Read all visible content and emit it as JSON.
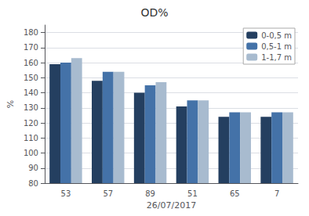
{
  "chart_data": {
    "type": "bar",
    "title": "OD%",
    "xlabel": "26/07/2017",
    "ylabel": "%",
    "categories": [
      "53",
      "57",
      "89",
      "51",
      "65",
      "7"
    ],
    "series": [
      {
        "name": "0-0,5 m",
        "color": "#243F60",
        "values": [
          159,
          148,
          140,
          131,
          124,
          124
        ]
      },
      {
        "name": "0,5-1 m",
        "color": "#4472A8",
        "values": [
          160,
          154,
          145,
          135,
          127,
          127
        ]
      },
      {
        "name": "1-1,7 m",
        "color": "#A8BBCF",
        "values": [
          163,
          154,
          147,
          135,
          127,
          127
        ]
      }
    ],
    "ylim": [
      80,
      185
    ],
    "yticks": [
      80,
      90,
      100,
      110,
      120,
      130,
      140,
      150,
      160,
      170,
      180
    ],
    "grid": true,
    "legend": "upper right"
  }
}
